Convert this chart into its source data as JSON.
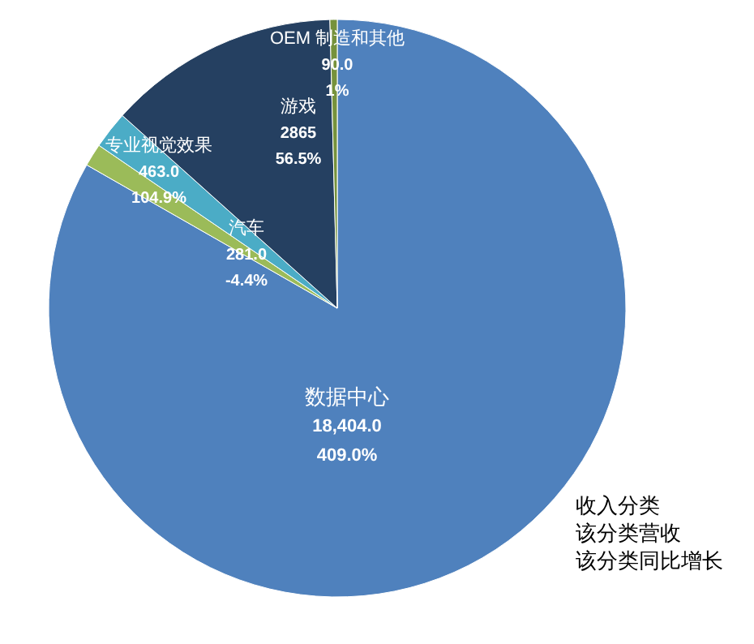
{
  "chart_data": {
    "type": "pie",
    "categories": [
      "数据中心",
      "汽车",
      "专业视觉效果",
      "游戏",
      "OEM 制造和其他"
    ],
    "values": [
      18404.0,
      281.0,
      463.0,
      2865,
      90.0
    ],
    "value_labels": [
      "18,404.0",
      "281.0",
      "463.0",
      "2865",
      "90.0"
    ],
    "colors": [
      "#4f81bd",
      "#9bbb59",
      "#4bacc6",
      "#254061",
      "#76923c"
    ],
    "annotations": [
      {
        "text": "409.0%",
        "x": "数据中心"
      },
      {
        "text": "-4.4%",
        "x": "汽车"
      },
      {
        "text": "104.9%",
        "x": "专业视觉效果"
      },
      {
        "text": "56.5%",
        "x": "游戏"
      },
      {
        "text": "1%",
        "x": "OEM 制造和其他"
      },
      "收入分类",
      "该分类营收",
      "该分类同比增长"
    ]
  }
}
